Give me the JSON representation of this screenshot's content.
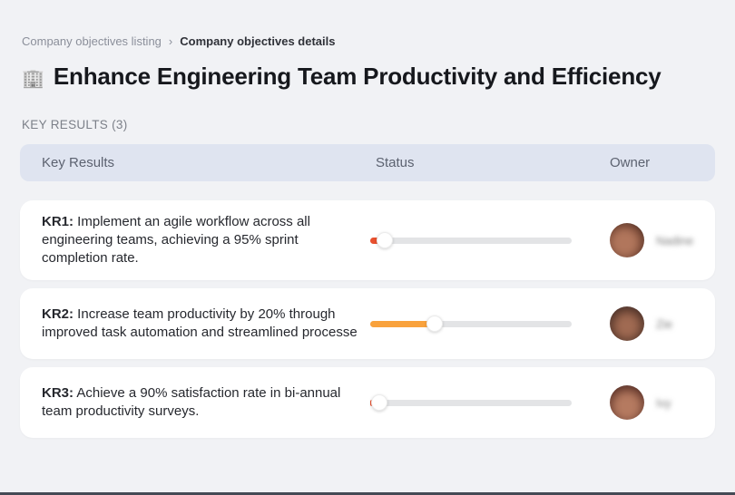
{
  "breadcrumb": {
    "separator": "›",
    "items": [
      {
        "label": "Company objectives listing"
      },
      {
        "label": "Company objectives details"
      }
    ]
  },
  "page": {
    "title": "Enhance Engineering Team Productivity and Efficiency",
    "title_icon": "office-building-icon",
    "title_icon_glyph": "🏢"
  },
  "section": {
    "label": "KEY RESULTS (3)"
  },
  "table": {
    "columns": {
      "0": "Key Results",
      "1": "Status",
      "2": "Owner"
    },
    "rows": [
      {
        "kr_label": "KR1:",
        "description": " Implement an agile workflow across all engineering teams, achieving a 95% sprint completion rate.",
        "progress_percent": 7,
        "progress_color": "#e8502e",
        "owner_name": "Nadine"
      },
      {
        "kr_label": "KR2:",
        "description": " Increase team productivity by 20% through improved task automation and streamlined processe",
        "progress_percent": 32,
        "progress_color": "#f9a23c",
        "owner_name": "Zie"
      },
      {
        "kr_label": "KR3:",
        "description": " Achieve a 90% satisfaction rate in bi-annual team productivity surveys.",
        "progress_percent": 2,
        "progress_color": "#e8502e",
        "owner_name": "Ivy"
      }
    ]
  },
  "colors": {
    "background": "#f1f2f5",
    "table_header_bg": "#dfe4f0",
    "card_bg": "#ffffff",
    "track": "#e3e4e6",
    "progress_low": "#e8502e",
    "progress_mid": "#f9a23c"
  }
}
